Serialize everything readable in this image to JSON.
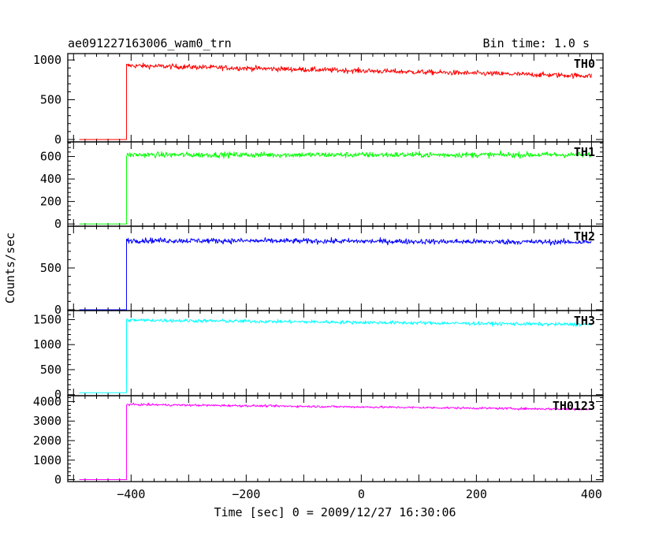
{
  "header": {
    "title": "ae091227163006_wam0_trn",
    "bin_time": "Bin time: 1.0 s"
  },
  "chart_data": {
    "type": "line",
    "xlabel": "Time [sec] 0 = 2009/12/27 16:30:06",
    "ylabel": "Counts/sec",
    "xlim": [
      -510,
      420
    ],
    "x_ticks": [
      -400,
      -200,
      0,
      200,
      400
    ],
    "x_tick_labels": [
      "−400",
      "−200",
      "0",
      "200",
      "400"
    ],
    "x_start": -490,
    "x_end": 400,
    "onset": -408,
    "panels": [
      {
        "name": "TH0",
        "color": "#ff0000",
        "ylim": [
          -30,
          1080
        ],
        "yticks": [
          0,
          500,
          1000
        ],
        "pre_level": 0,
        "level_start": 930,
        "level_end": 800,
        "noise": 45
      },
      {
        "name": "TH1",
        "color": "#00ff00",
        "ylim": [
          -20,
          730
        ],
        "yticks": [
          0,
          200,
          400,
          600
        ],
        "pre_level": 0,
        "level_start": 615,
        "level_end": 615,
        "noise": 35
      },
      {
        "name": "TH2",
        "color": "#0000ff",
        "ylim": [
          -10,
          1000
        ],
        "yticks": [
          0,
          500
        ],
        "pre_level": 0,
        "level_start": 830,
        "level_end": 810,
        "noise": 45
      },
      {
        "name": "TH3",
        "color": "#00ffff",
        "ylim": [
          -20,
          1680
        ],
        "yticks": [
          0,
          500,
          1000,
          1500
        ],
        "pre_level": 40,
        "level_start": 1490,
        "level_end": 1400,
        "noise": 50
      },
      {
        "name": "TH0123",
        "color": "#ff00ff",
        "ylim": [
          -100,
          4300
        ],
        "yticks": [
          0,
          1000,
          2000,
          3000,
          4000
        ],
        "pre_level": 0,
        "level_start": 3850,
        "level_end": 3600,
        "noise": 80
      }
    ]
  }
}
